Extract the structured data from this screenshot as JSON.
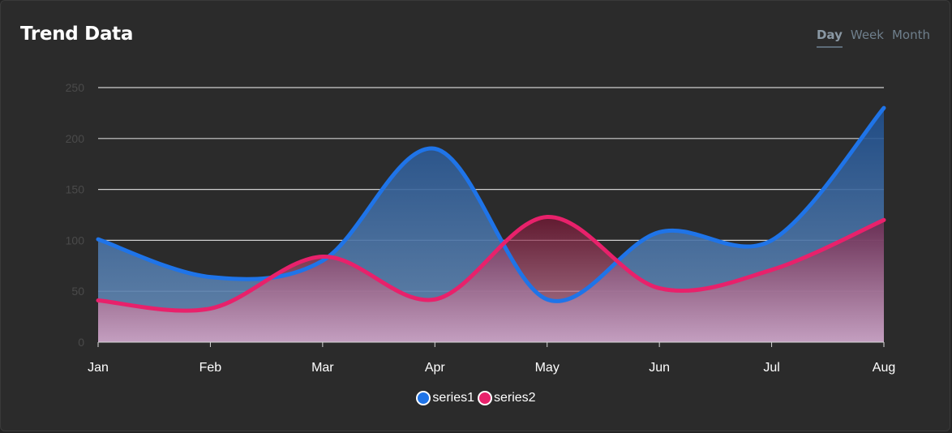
{
  "header": {
    "title": "Trend Data",
    "tabs": [
      {
        "label": "Day",
        "active": true
      },
      {
        "label": "Week",
        "active": false
      },
      {
        "label": "Month",
        "active": false
      }
    ]
  },
  "chart_data": {
    "type": "area",
    "title": "Trend Data",
    "categories": [
      "Jan",
      "Feb",
      "Mar",
      "Apr",
      "May",
      "Jun",
      "Jul",
      "Aug"
    ],
    "ylim": [
      0,
      250
    ],
    "yticks": [
      0,
      50,
      100,
      150,
      200,
      250
    ],
    "grid": true,
    "legend_position": "bottom",
    "series": [
      {
        "name": "series1",
        "color": "#1f74e8",
        "values": [
          101,
          64,
          80,
          190,
          42,
          108,
          100,
          230
        ]
      },
      {
        "name": "series2",
        "color": "#e8216b",
        "values": [
          41,
          33,
          84,
          42,
          123,
          53,
          71,
          120
        ]
      }
    ]
  },
  "colors": {
    "background": "#2b2b2b",
    "grid": "#d0d0d0",
    "series1": "#1f74e8",
    "series2": "#e8216b"
  }
}
